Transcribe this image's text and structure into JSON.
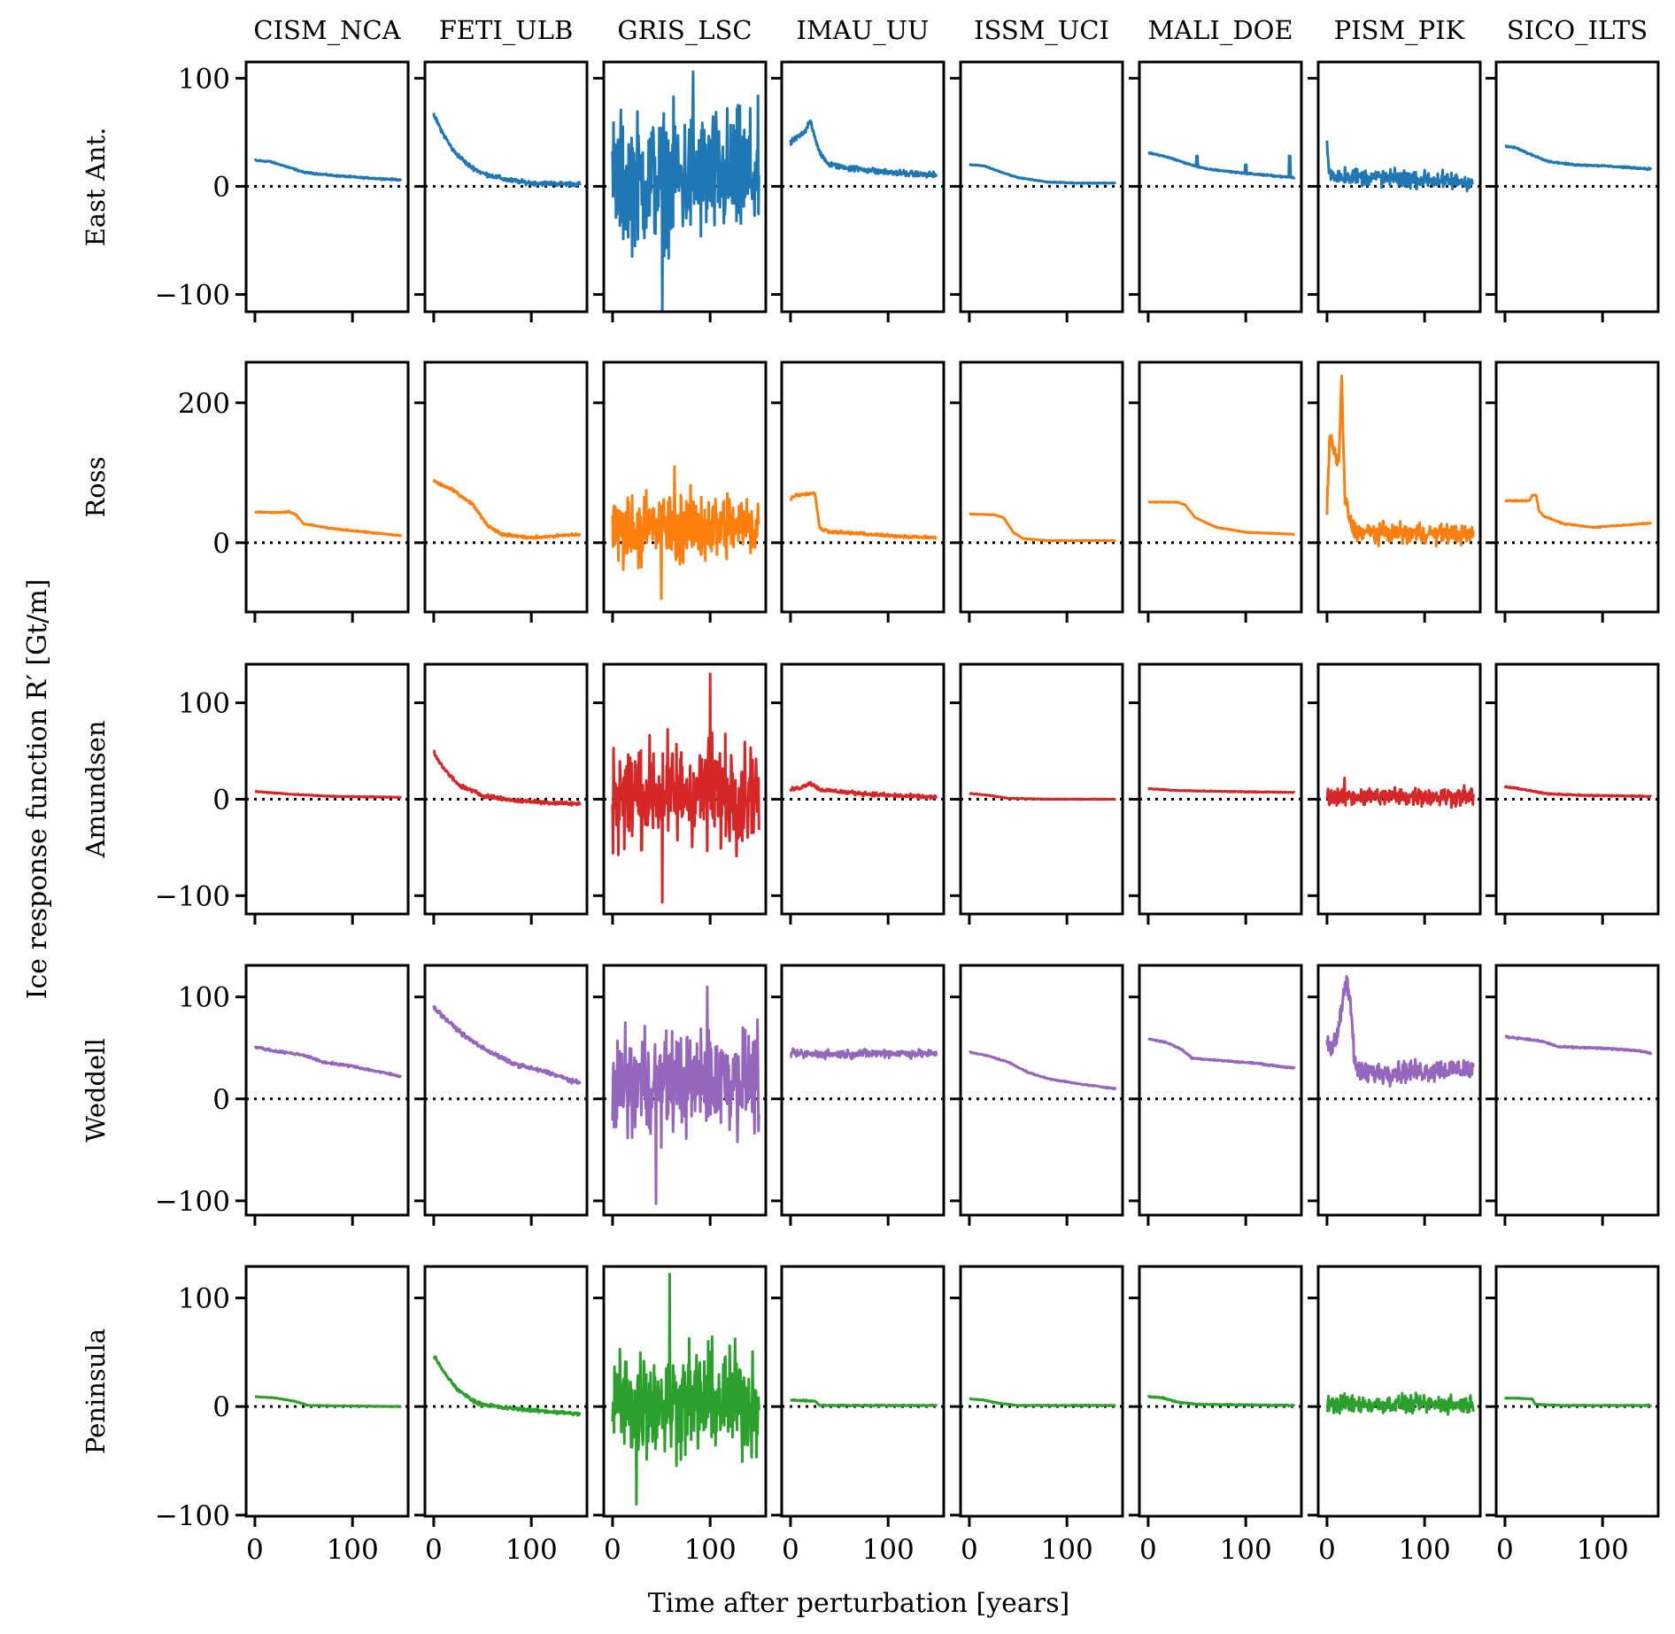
{
  "chart_data": {
    "type": "line",
    "layout": "small-multiples grid (5 rows x 8 columns, shared axes)",
    "xlabel": "Time after perturbation [years]",
    "ylabel": "Ice response function R′ [Gt/m]",
    "x_range": [
      -9,
      157
    ],
    "x_ticks": [
      0,
      100
    ],
    "x_tick_labels": [
      "0",
      "100"
    ],
    "reference_line": {
      "y": 0,
      "style": "dotted",
      "color": "#000000"
    },
    "columns": [
      "CISM_NCA",
      "FETI_ULB",
      "GRIS_LSC",
      "IMAU_UU",
      "ISSM_UCI",
      "MALI_DOE",
      "PISM_PIK",
      "SICO_ILTS"
    ],
    "rows": [
      {
        "name": "East Ant.",
        "color": "#1f77b4",
        "ylim": [
          -116,
          115
        ],
        "y_ticks": [
          -100,
          0,
          100
        ],
        "y_tick_labels": [
          "−100",
          "0",
          "100"
        ]
      },
      {
        "name": "Ross",
        "color": "#ff7f0e",
        "ylim": [
          -99,
          258
        ],
        "y_ticks": [
          0,
          200
        ],
        "y_tick_labels": [
          "0",
          "200"
        ]
      },
      {
        "name": "Amundsen",
        "color": "#d62728",
        "ylim": [
          -119,
          140
        ],
        "y_ticks": [
          -100,
          0,
          100
        ],
        "y_tick_labels": [
          "−100",
          "0",
          "100"
        ]
      },
      {
        "name": "Weddell",
        "color": "#9467bd",
        "ylim": [
          -114,
          131
        ],
        "y_ticks": [
          -100,
          0,
          100
        ],
        "y_tick_labels": [
          "−100",
          "0",
          "100"
        ]
      },
      {
        "name": "Peninsula",
        "color": "#2ca02c",
        "ylim": [
          -101,
          129
        ],
        "y_ticks": [
          -100,
          0,
          100
        ],
        "y_tick_labels": [
          "−100",
          "0",
          "100"
        ]
      }
    ],
    "series_description": "Each panel: response vs time (0-150 yr). Values are approximate control points read from the plot; 'noise' gives amplitude of high-frequency fluctuation.",
    "series": {
      "East Ant.": {
        "CISM_NCA": {
          "x": [
            0,
            15,
            30,
            50,
            80,
            110,
            150
          ],
          "y": [
            24,
            23,
            19,
            13,
            10,
            8,
            6
          ],
          "noise": 0.5
        },
        "FETI_ULB": {
          "x": [
            0,
            10,
            20,
            35,
            50,
            75,
            100,
            150
          ],
          "y": [
            66,
            48,
            33,
            20,
            12,
            6,
            3,
            2
          ],
          "noise": 1.5
        },
        "GRIS_LSC": {
          "x": [
            0,
            150
          ],
          "y": [
            5,
            10
          ],
          "noise": 55,
          "peak_max": 106,
          "peak_min": -117
        },
        "IMAU_UU": {
          "x": [
            0,
            5,
            15,
            20,
            30,
            40,
            60,
            100,
            150
          ],
          "y": [
            40,
            44,
            50,
            62,
            30,
            20,
            17,
            13,
            10
          ],
          "noise": 2
        },
        "ISSM_UCI": {
          "x": [
            0,
            15,
            30,
            50,
            80,
            110,
            150
          ],
          "y": [
            20,
            19,
            14,
            8,
            4,
            3,
            3
          ],
          "noise": 0.3
        },
        "MALI_DOE": {
          "x": [
            0,
            20,
            40,
            60,
            100,
            150
          ],
          "y": [
            31,
            27,
            21,
            16,
            12,
            8
          ],
          "noise": 0.5,
          "spikes": [
            [
              50,
              28
            ],
            [
              100,
              20
            ],
            [
              145,
              28
            ]
          ]
        },
        "PISM_PIK": {
          "x": [
            0,
            2,
            5,
            150
          ],
          "y": [
            40,
            14,
            10,
            4
          ],
          "noise": 6
        },
        "SICO_ILTS": {
          "x": [
            0,
            10,
            25,
            45,
            70,
            100,
            150
          ],
          "y": [
            37,
            36,
            30,
            23,
            20,
            19,
            16
          ],
          "noise": 0.5
        }
      },
      "Ross": {
        "CISM_NCA": {
          "x": [
            0,
            20,
            35,
            42,
            50,
            80,
            150
          ],
          "y": [
            44,
            43,
            44,
            40,
            27,
            20,
            10
          ],
          "noise": 0.6
        },
        "FETI_ULB": {
          "x": [
            0,
            20,
            40,
            55,
            70,
            100,
            150
          ],
          "y": [
            88,
            75,
            55,
            25,
            12,
            7,
            12
          ],
          "noise": 1.5
        },
        "GRIS_LSC": {
          "x": [
            0,
            150
          ],
          "y": [
            20,
            25
          ],
          "noise": 45,
          "peak_max": 109,
          "peak_min": -80
        },
        "IMAU_UU": {
          "x": [
            0,
            5,
            25,
            30,
            40,
            100,
            150
          ],
          "y": [
            62,
            68,
            71,
            20,
            16,
            10,
            7
          ],
          "noise": 1.5
        },
        "ISSM_UCI": {
          "x": [
            0,
            25,
            35,
            45,
            55,
            80,
            150
          ],
          "y": [
            41,
            40,
            36,
            15,
            6,
            3,
            3
          ],
          "noise": 0.3
        },
        "MALI_DOE": {
          "x": [
            0,
            30,
            38,
            48,
            70,
            100,
            150
          ],
          "y": [
            58,
            58,
            54,
            36,
            22,
            15,
            12
          ],
          "noise": 0.3
        },
        "PISM_PIK": {
          "x": [
            0,
            3,
            8,
            12,
            15,
            18,
            22,
            26,
            30,
            150
          ],
          "y": [
            55,
            150,
            130,
            110,
            240,
            70,
            40,
            20,
            15,
            12
          ],
          "noise": 10
        },
        "SICO_ILTS": {
          "x": [
            0,
            25,
            28,
            32,
            35,
            40,
            60,
            90,
            150
          ],
          "y": [
            60,
            60,
            68,
            68,
            45,
            38,
            27,
            22,
            28
          ],
          "noise": 0.5
        }
      },
      "Amundsen": {
        "CISM_NCA": {
          "x": [
            0,
            40,
            80,
            150
          ],
          "y": [
            8,
            5,
            3,
            2
          ],
          "noise": 0.3
        },
        "FETI_ULB": {
          "x": [
            0,
            10,
            25,
            50,
            80,
            110,
            150
          ],
          "y": [
            49,
            32,
            15,
            4,
            -1,
            -3,
            -5
          ],
          "noise": 1.5
        },
        "GRIS_LSC": {
          "x": [
            0,
            150
          ],
          "y": [
            5,
            10
          ],
          "noise": 50,
          "peak_max": 130,
          "peak_min": -107
        },
        "IMAU_UU": {
          "x": [
            0,
            10,
            20,
            30,
            60,
            100,
            150
          ],
          "y": [
            10,
            12,
            17,
            10,
            7,
            4,
            2
          ],
          "noise": 1.5
        },
        "ISSM_UCI": {
          "x": [
            0,
            20,
            40,
            80,
            150
          ],
          "y": [
            6,
            4,
            1,
            0,
            0
          ],
          "noise": 0.2
        },
        "MALI_DOE": {
          "x": [
            0,
            30,
            80,
            150
          ],
          "y": [
            11,
            9,
            8,
            7
          ],
          "noise": 0.3
        },
        "PISM_PIK": {
          "x": [
            0,
            150
          ],
          "y": [
            3,
            3
          ],
          "noise": 7,
          "peak_max": 22
        },
        "SICO_ILTS": {
          "x": [
            0,
            20,
            40,
            80,
            150
          ],
          "y": [
            13,
            10,
            6,
            4,
            3
          ],
          "noise": 0.5
        }
      },
      "Weddell": {
        "CISM_NCA": {
          "x": [
            0,
            20,
            50,
            70,
            100,
            130,
            150
          ],
          "y": [
            51,
            47,
            43,
            36,
            32,
            26,
            22
          ],
          "noise": 0.8
        },
        "FETI_ULB": {
          "x": [
            0,
            15,
            30,
            50,
            80,
            120,
            150
          ],
          "y": [
            90,
            76,
            63,
            50,
            35,
            25,
            15
          ],
          "noise": 1.5
        },
        "GRIS_LSC": {
          "x": [
            0,
            150
          ],
          "y": [
            15,
            20
          ],
          "noise": 45,
          "peak_max": 110,
          "peak_min": -103
        },
        "IMAU_UU": {
          "x": [
            0,
            50,
            100,
            150
          ],
          "y": [
            44,
            44,
            45,
            44
          ],
          "noise": 3
        },
        "ISSM_UCI": {
          "x": [
            0,
            20,
            40,
            60,
            80,
            110,
            150
          ],
          "y": [
            46,
            42,
            36,
            26,
            20,
            15,
            10
          ],
          "noise": 0.4
        },
        "MALI_DOE": {
          "x": [
            0,
            20,
            35,
            45,
            70,
            110,
            150
          ],
          "y": [
            59,
            55,
            48,
            40,
            38,
            35,
            30
          ],
          "noise": 0.5
        },
        "PISM_PIK": {
          "x": [
            0,
            5,
            10,
            15,
            20,
            25,
            28,
            35,
            150
          ],
          "y": [
            55,
            50,
            60,
            90,
            122,
            85,
            35,
            25,
            30
          ],
          "noise": 8
        },
        "SICO_ILTS": {
          "x": [
            0,
            20,
            40,
            55,
            90,
            130,
            150
          ],
          "y": [
            61,
            59,
            56,
            51,
            50,
            48,
            45
          ],
          "noise": 0.6
        }
      },
      "Peninsula": {
        "CISM_NCA": {
          "x": [
            0,
            20,
            40,
            55,
            150
          ],
          "y": [
            9,
            8,
            5,
            1,
            0
          ],
          "noise": 0.2
        },
        "FETI_ULB": {
          "x": [
            0,
            10,
            25,
            45,
            70,
            110,
            150
          ],
          "y": [
            47,
            32,
            15,
            3,
            -1,
            -4,
            -7
          ],
          "noise": 1.2
        },
        "GRIS_LSC": {
          "x": [
            0,
            150
          ],
          "y": [
            5,
            5
          ],
          "noise": 45,
          "peak_max": 122,
          "peak_min": -90
        },
        "IMAU_UU": {
          "x": [
            0,
            25,
            30,
            150
          ],
          "y": [
            6,
            5,
            1,
            1
          ],
          "noise": 0.4
        },
        "ISSM_UCI": {
          "x": [
            0,
            15,
            30,
            50,
            150
          ],
          "y": [
            7,
            6,
            3,
            1,
            1
          ],
          "noise": 0.3
        },
        "MALI_DOE": {
          "x": [
            0,
            15,
            30,
            50,
            150
          ],
          "y": [
            9,
            8,
            4,
            2,
            1
          ],
          "noise": 0.4
        },
        "PISM_PIK": {
          "x": [
            0,
            150
          ],
          "y": [
            2,
            2
          ],
          "noise": 6,
          "peak_max": 12
        },
        "SICO_ILTS": {
          "x": [
            0,
            28,
            31,
            60,
            150
          ],
          "y": [
            8,
            7,
            2,
            1,
            1
          ],
          "noise": 0.3
        }
      }
    }
  }
}
